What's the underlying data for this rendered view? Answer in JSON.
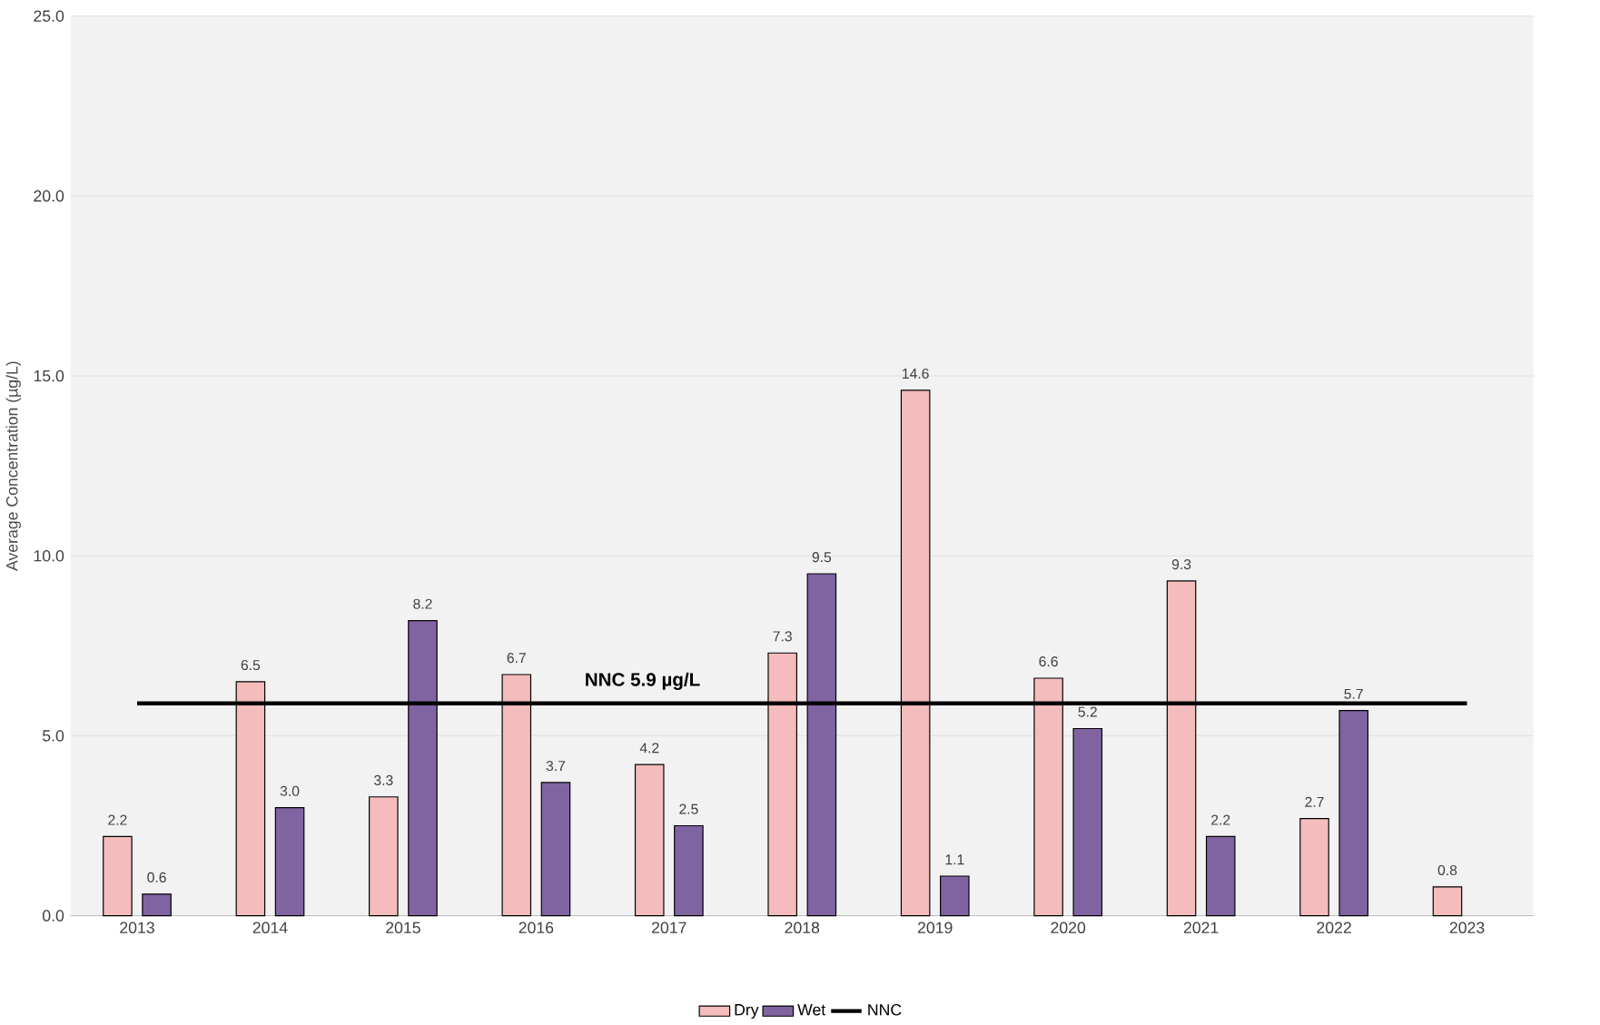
{
  "chart_data": {
    "type": "bar",
    "ylabel": "Average Concentration (µg/L)",
    "categories": [
      "2013",
      "2014",
      "2015",
      "2016",
      "2017",
      "2018",
      "2019",
      "2020",
      "2021",
      "2022",
      "2023"
    ],
    "series": [
      {
        "name": "Dry",
        "color": "#f4bcbc",
        "values": [
          2.2,
          6.5,
          3.3,
          6.7,
          4.2,
          7.3,
          14.6,
          6.6,
          9.3,
          2.7,
          0.8
        ],
        "value_labels": [
          "2.2",
          "6.5",
          "3.3",
          "6.7",
          "4.2",
          "7.3",
          "14.6",
          "6.6",
          "9.3",
          "2.7",
          "0.8"
        ]
      },
      {
        "name": "Wet",
        "color": "#8064a2",
        "values": [
          0.6,
          3.0,
          8.2,
          3.7,
          2.5,
          9.5,
          1.1,
          5.2,
          2.2,
          5.7,
          null
        ],
        "value_labels": [
          "0.6",
          "3.0",
          "8.2",
          "3.7",
          "2.5",
          "9.5",
          "1.1",
          "5.2",
          "2.2",
          "5.7",
          null
        ]
      },
      {
        "name": "NNC",
        "type": "line",
        "color": "#000000",
        "values": [
          5.9,
          5.9,
          5.9,
          5.9,
          5.9,
          5.9,
          5.9,
          5.9,
          5.9,
          5.9,
          5.9
        ]
      }
    ],
    "annotations": [
      "**NNC 5.9 µg/L**"
    ],
    "ylim": [
      0,
      25
    ],
    "yticks": [
      {
        "value": 0,
        "label": "0.0"
      },
      {
        "value": 5,
        "label": "5.0"
      },
      {
        "value": 10,
        "label": "10.0"
      },
      {
        "value": 15,
        "label": "15.0"
      },
      {
        "value": 20,
        "label": "20.0"
      },
      {
        "value": 25,
        "label": "25.0"
      }
    ],
    "grid": "y",
    "legend": "bottom"
  }
}
